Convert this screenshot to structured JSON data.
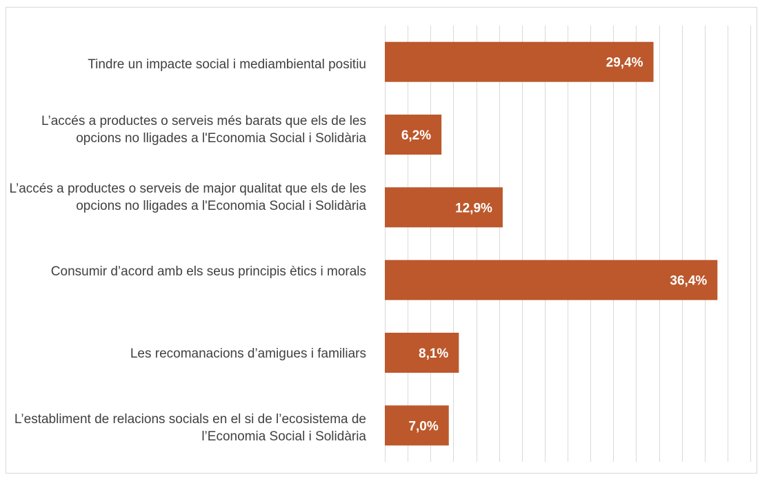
{
  "chart_data": {
    "type": "bar",
    "orientation": "horizontal",
    "categories": [
      "Tindre un impacte social i mediambiental positiu",
      "L’accés a productes o serveis més barats que els de les opcions no lligades a l'Economia Social i Solidària",
      "L’accés a productes o serveis de major qualitat que els de les opcions no lligades a l'Economia Social i Solidària",
      "Consumir d’acord amb els seus principis ètics i morals",
      "Les recomanacions d’amigues i familiars",
      "L’establiment de relacions socials en el si de l’ecosistema de l’Economia Social i Solidària"
    ],
    "values": [
      29.4,
      6.2,
      12.9,
      36.4,
      8.1,
      7.0
    ],
    "data_labels": [
      "29,4%",
      "6,2%",
      "12,9%",
      "36,4%",
      "8,1%",
      "7,0%"
    ],
    "xlim": [
      0,
      40
    ],
    "grid": "vertical gridlines",
    "bar_color": "#bc582c",
    "title": "",
    "xlabel": "",
    "ylabel": ""
  }
}
